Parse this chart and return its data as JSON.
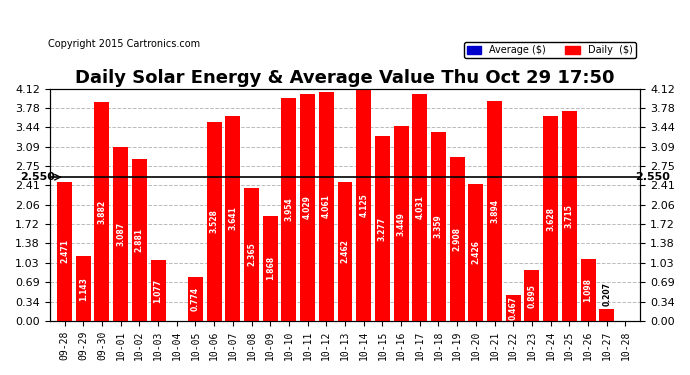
{
  "title": "Daily Solar Energy & Average Value Thu Oct 29 17:50",
  "copyright": "Copyright 2015 Cartronics.com",
  "categories": [
    "09-28",
    "09-29",
    "09-30",
    "10-01",
    "10-02",
    "10-03",
    "10-04",
    "10-05",
    "10-06",
    "10-07",
    "10-08",
    "10-09",
    "10-10",
    "10-11",
    "10-12",
    "10-13",
    "10-14",
    "10-15",
    "10-16",
    "10-17",
    "10-18",
    "10-19",
    "10-20",
    "10-21",
    "10-22",
    "10-23",
    "10-24",
    "10-25",
    "10-26",
    "10-27",
    "10-28"
  ],
  "values": [
    2.471,
    1.143,
    3.882,
    3.087,
    2.881,
    1.077,
    0.0,
    0.774,
    3.528,
    3.641,
    2.365,
    1.868,
    3.954,
    4.029,
    4.061,
    2.462,
    4.125,
    3.277,
    3.449,
    4.031,
    3.359,
    2.908,
    2.426,
    3.894,
    0.467,
    0.895,
    3.628,
    3.715,
    1.098,
    0.207,
    0.0
  ],
  "average": 2.55,
  "bar_color": "#ff0000",
  "average_line_color": "#000000",
  "ylim": [
    0.0,
    4.12
  ],
  "yticks": [
    0.0,
    0.34,
    0.69,
    1.03,
    1.38,
    1.72,
    2.06,
    2.41,
    2.75,
    3.09,
    3.44,
    3.78,
    4.12
  ],
  "legend_avg_color": "#0000cc",
  "legend_daily_color": "#ff0000",
  "legend_avg_text": "Average ($)",
  "legend_daily_text": "Daily  ($)",
  "title_fontsize": 13,
  "copyright_fontsize": 7,
  "tick_fontsize": 8,
  "value_fontsize": 5.5,
  "bg_color": "#ffffff",
  "grid_color": "#bbbbbb"
}
